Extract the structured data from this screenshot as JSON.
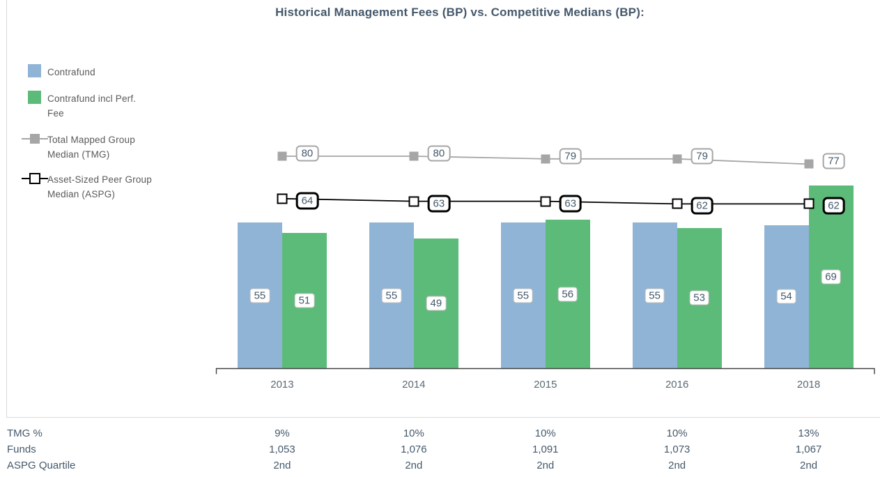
{
  "title": "Historical Management Fees (BP) vs. Competitive Medians (BP):",
  "colors": {
    "contrafund_blue": "#8FB4D6",
    "perf_fee_green": "#5CBB79",
    "tmg_gray": "#A6A6A6",
    "aspg_black": "#000000",
    "slate_text": "#44586B",
    "legend_text": "#595959",
    "year_text": "#5C6B75",
    "axis_line": "#404040",
    "frame_line": "#D9D9D9",
    "bar_label_border": "#BFBFBF"
  },
  "legend": {
    "items": [
      {
        "marker": "blue-square-swatch",
        "lines": [
          "Contrafund"
        ]
      },
      {
        "marker": "green-square-swatch",
        "lines": [
          "Contrafund incl Perf.",
          "Fee"
        ]
      },
      {
        "marker": "gray-filled-square-on-line",
        "lines": [
          "Total Mapped Group",
          "Median (TMG)"
        ]
      },
      {
        "marker": "black-open-square-on-line",
        "lines": [
          "Asset-Sized Peer Group",
          "Median (ASPG)"
        ]
      }
    ]
  },
  "chart_data": {
    "type": "bar",
    "subtype": "grouped-bars-with-line-overlays",
    "title": "Historical Management Fees (BP) vs. Competitive Medians (BP):",
    "categories": [
      "2013",
      "2014",
      "2015",
      "2016",
      "2018"
    ],
    "series": [
      {
        "name": "Contrafund",
        "type": "bar",
        "color": "#8FB4D6",
        "values": [
          55,
          55,
          55,
          55,
          54
        ]
      },
      {
        "name": "Contrafund incl Perf. Fee",
        "type": "bar",
        "color": "#5CBB79",
        "values": [
          51,
          49,
          56,
          53,
          69
        ]
      },
      {
        "name": "Total Mapped Group Median (TMG)",
        "type": "line",
        "color": "#A6A6A6",
        "marker": "filled-square",
        "values": [
          80,
          80,
          79,
          79,
          77
        ]
      },
      {
        "name": "Asset-Sized Peer Group Median (ASPG)",
        "type": "line",
        "color": "#000000",
        "marker": "open-square",
        "values": [
          64,
          63,
          63,
          62,
          62
        ]
      }
    ],
    "value_labels": true,
    "ylim": [
      0,
      85
    ],
    "xlabel": "",
    "ylabel": "",
    "grid": false,
    "axis_style": "bottom bracket axis only, no y-axis ticks",
    "legend_position": "left"
  },
  "table": {
    "rows": [
      {
        "label": "TMG %",
        "values": [
          "9%",
          "10%",
          "10%",
          "10%",
          "13%"
        ]
      },
      {
        "label": "Funds",
        "values": [
          "1,053",
          "1,076",
          "1,091",
          "1,073",
          "1,067"
        ]
      },
      {
        "label": "ASPG Quartile",
        "values": [
          "2nd",
          "2nd",
          "2nd",
          "2nd",
          "2nd"
        ]
      }
    ]
  }
}
